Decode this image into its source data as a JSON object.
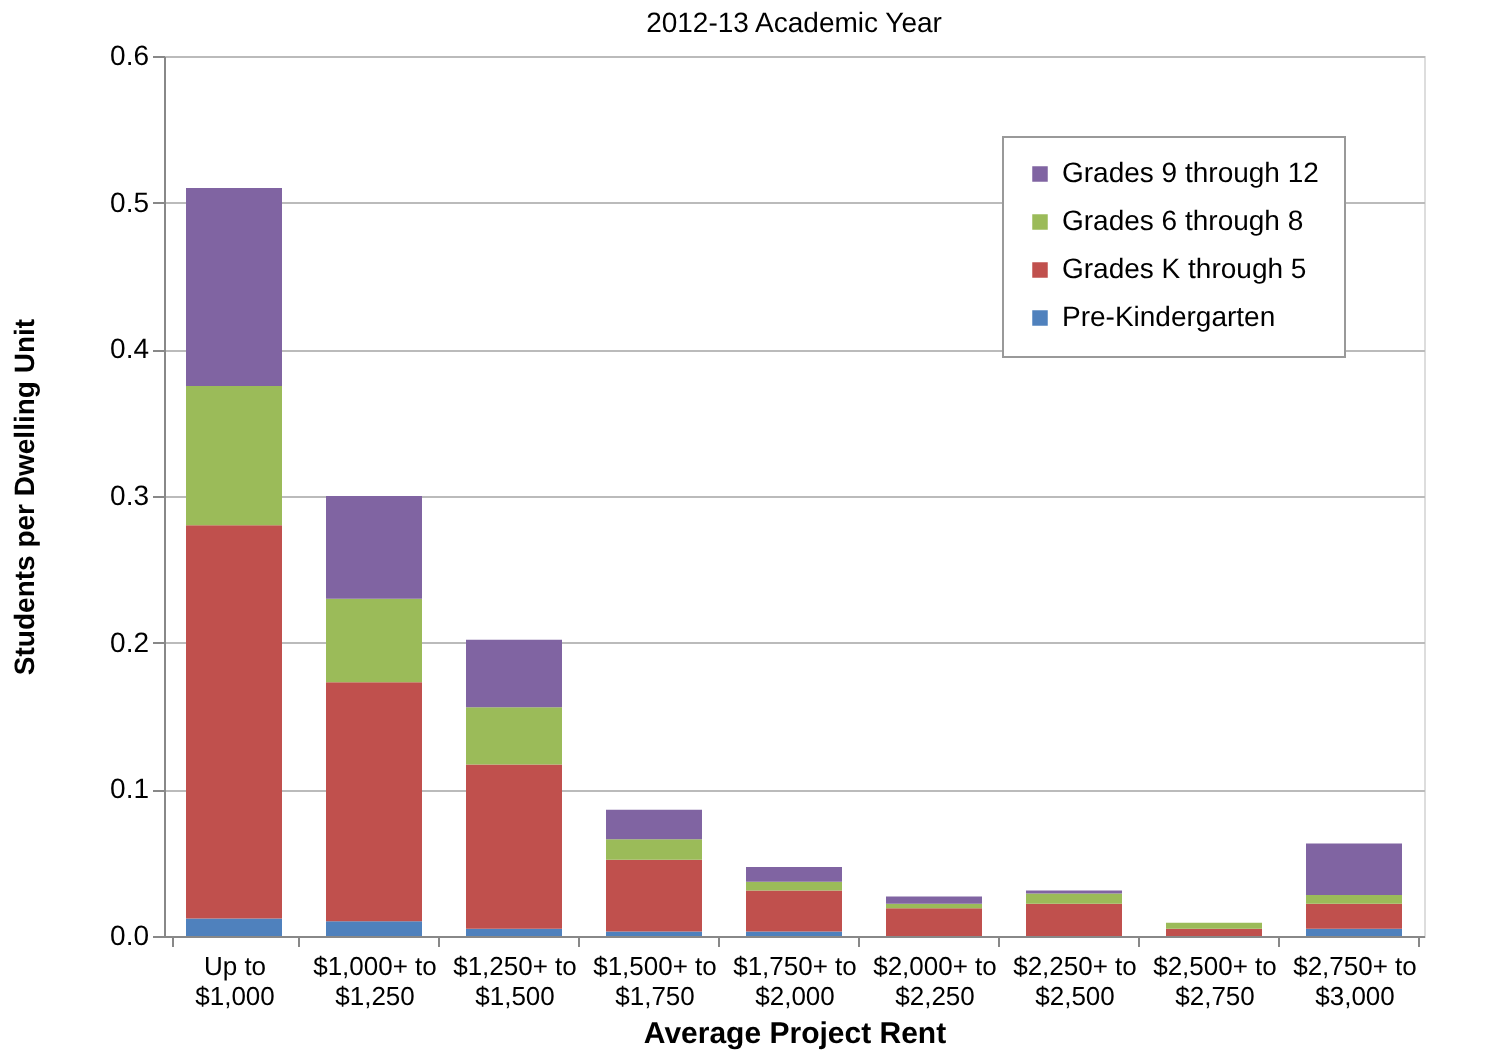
{
  "chart_data": {
    "type": "bar",
    "title": "2012-13 Academic Year",
    "xlabel": "Average Project Rent",
    "ylabel": "Students per Dwelling Unit",
    "categories": [
      "Up to\n$1,000",
      "$1,000+ to\n$1,250",
      "$1,250+ to\n$1,500",
      "$1,500+ to\n$1,750",
      "$1,750+ to\n$2,000",
      "$2,000+ to\n$2,250",
      "$2,250+ to\n$2,500",
      "$2,500+ to\n$2,750",
      "$2,750+ to\n$3,000"
    ],
    "stacked": true,
    "series": [
      {
        "name": "Pre-Kindergarten",
        "color": "#4f81bd",
        "values": [
          0.012,
          0.01,
          0.005,
          0.003,
          0.003,
          0,
          0,
          0,
          0.005
        ]
      },
      {
        "name": "Grades K through 5",
        "color": "#c0504d",
        "values": [
          0.268,
          0.163,
          0.112,
          0.049,
          0.028,
          0.019,
          0.022,
          0.005,
          0.017
        ]
      },
      {
        "name": "Grades 6 through 8",
        "color": "#9bbb59",
        "values": [
          0.095,
          0.057,
          0.039,
          0.014,
          0.006,
          0.003,
          0.007,
          0.004,
          0.006
        ]
      },
      {
        "name": "Grades 9 through 12",
        "color": "#8064a2",
        "values": [
          0.135,
          0.07,
          0.046,
          0.02,
          0.01,
          0.005,
          0.002,
          0,
          0.035
        ]
      }
    ],
    "ylim": [
      0,
      0.6
    ],
    "yticks": [
      {
        "value": 0,
        "label": "0.0"
      },
      0.1,
      0.2,
      0.3,
      0.4,
      0.5,
      0.6
    ],
    "grid": "y",
    "legend": "top right"
  }
}
